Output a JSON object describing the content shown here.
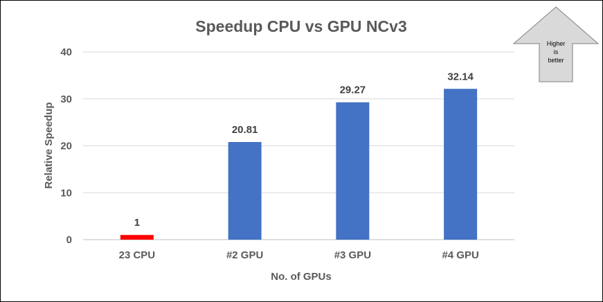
{
  "chart_data": {
    "type": "bar",
    "title": "Speedup CPU vs GPU NCv3",
    "xlabel": "No. of GPUs",
    "ylabel": "Relative Speedup",
    "categories": [
      "23 CPU",
      "#2 GPU",
      "#3 GPU",
      "#4 GPU"
    ],
    "values": [
      1,
      20.81,
      29.27,
      32.14
    ],
    "data_labels": [
      "1",
      "20.81",
      "29.27",
      "32.14"
    ],
    "bar_colors": [
      "#ff0000",
      "#4472c4",
      "#4472c4",
      "#4472c4"
    ],
    "ylim": [
      0,
      40
    ],
    "yticks": [
      "0",
      "10",
      "20",
      "30",
      "40"
    ],
    "grid": true,
    "legend": "none"
  },
  "callout": {
    "line1": "Higher",
    "line2": "is",
    "line3": "better"
  },
  "colors": {
    "text": "#595959",
    "grid": "#d9d9d9",
    "arrow_fill": "#d9d9d9",
    "arrow_stroke": "#7f7f7f"
  }
}
